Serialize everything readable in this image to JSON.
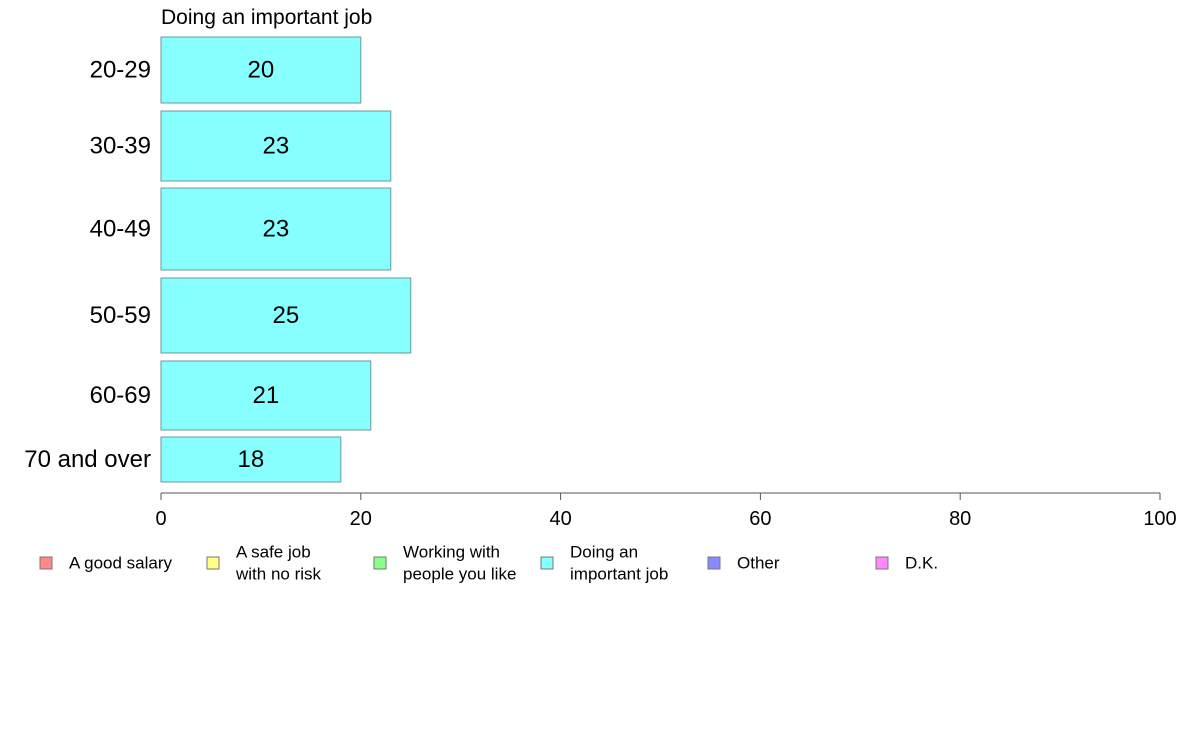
{
  "chart_data": {
    "type": "bar",
    "orientation": "horizontal",
    "title": "Doing an important job",
    "xlabel": "",
    "ylabel": "",
    "categories": [
      "20-29",
      "30-39",
      "40-49",
      "50-59",
      "60-69",
      "70 and over"
    ],
    "series": [
      {
        "name": "Doing an important job",
        "color": "#88ffff",
        "values": [
          20,
          23,
          23,
          25,
          21,
          18
        ]
      }
    ],
    "xlim": [
      0,
      100
    ],
    "xticks": [
      "0",
      "20",
      "40",
      "60",
      "80",
      "100"
    ],
    "grid": false,
    "legend": {
      "placement": "bottom",
      "entries": [
        {
          "lines": [
            "A good salary"
          ],
          "color": "#ff8888"
        },
        {
          "lines": [
            "A safe job",
            "with no risk"
          ],
          "color": "#ffff88"
        },
        {
          "lines": [
            "Working with",
            "people you like"
          ],
          "color": "#88ff88"
        },
        {
          "lines": [
            "Doing an",
            "important job"
          ],
          "color": "#88ffff"
        },
        {
          "lines": [
            "Other"
          ],
          "color": "#8888ff"
        },
        {
          "lines": [
            "D.K."
          ],
          "color": "#ff88ff"
        }
      ]
    }
  }
}
